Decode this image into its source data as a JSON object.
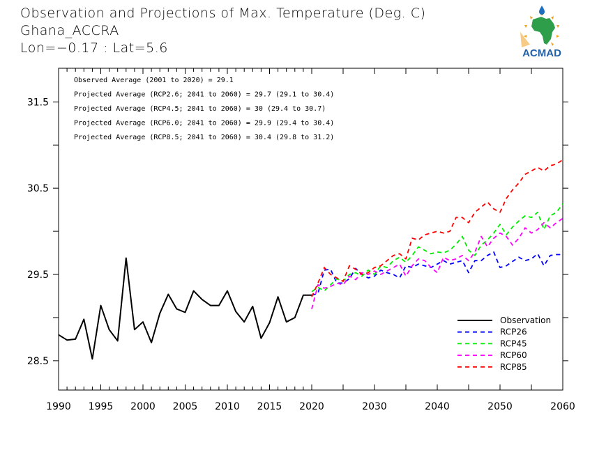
{
  "header": {
    "title": "Observation and Projections of Max. Temperature (Deg. C)",
    "location": "Ghana_ACCRA",
    "coords": "Lon=−0.17 : Lat=5.6"
  },
  "logo": {
    "text": "ACMAD",
    "colors": {
      "text": "#1f5fa8",
      "map": "#2e9e4a",
      "sun": "#f0a020",
      "drop": "#1f6fc0"
    }
  },
  "chart_data": {
    "type": "line",
    "title": "Observation and Projections of Max. Temperature (Deg. C)",
    "xlabel": "",
    "ylabel": "",
    "ylim": [
      28.16,
      31.89
    ],
    "xlim": [
      1990,
      2060
    ],
    "x_axis_note": "piecewise scale: 1990-2020 expanded, 2020-2060 compressed",
    "yticks": [
      28.5,
      29.5,
      30.5,
      31.5
    ],
    "yticks_minor": [
      29.0,
      30.0,
      31.0
    ],
    "xticks": [
      1990,
      1995,
      2000,
      2005,
      2010,
      2015,
      2020,
      2030,
      2040,
      2050,
      2060
    ],
    "xtick_labels": [
      "1990",
      "1995",
      "2000",
      "2005",
      "2010",
      "2015",
      "2020",
      "2030",
      "2040",
      "2050",
      "2060"
    ],
    "grid": false,
    "legend_position": "bottom-right",
    "annotations": [
      "Observed Average (2001 to 2020) = 29.1",
      "Projected Average (RCP2.6; 2041 to 2060) = 29.7 (29.1 to 30.4)",
      "Projected Average (RCP4.5; 2041 to 2060) = 30 (29.4 to 30.7)",
      "Projected Average (RCP6.0; 2041 to 2060) = 29.9 (29.4 to 30.4)",
      "Projected Average (RCP8.5; 2041 to 2060) = 30.4 (29.8 to 31.2)"
    ],
    "series": [
      {
        "name": "Observation",
        "color": "#000000",
        "style": "solid",
        "x": [
          1990,
          1991,
          1992,
          1993,
          1994,
          1995,
          1996,
          1997,
          1998,
          1999,
          2000,
          2001,
          2002,
          2003,
          2004,
          2005,
          2006,
          2007,
          2008,
          2009,
          2010,
          2011,
          2012,
          2013,
          2014,
          2015,
          2016,
          2017,
          2018,
          2019,
          2020
        ],
        "values": [
          28.8,
          28.74,
          28.75,
          28.98,
          28.52,
          29.14,
          28.86,
          28.73,
          29.69,
          28.86,
          28.95,
          28.71,
          29.05,
          29.27,
          29.1,
          29.06,
          29.31,
          29.21,
          29.14,
          29.14,
          29.31,
          29.07,
          28.95,
          29.13,
          28.76,
          28.94,
          29.24,
          28.95,
          29.0,
          29.26,
          29.26
        ]
      },
      {
        "name": "RCP26",
        "color": "#0000ff",
        "style": "dashed",
        "x": [
          2020,
          2021,
          2022,
          2023,
          2024,
          2025,
          2026,
          2027,
          2028,
          2029,
          2030,
          2031,
          2032,
          2033,
          2034,
          2035,
          2036,
          2037,
          2038,
          2039,
          2040,
          2041,
          2042,
          2043,
          2044,
          2045,
          2046,
          2047,
          2048,
          2049,
          2050,
          2051,
          2052,
          2053,
          2054,
          2055,
          2056,
          2057,
          2058,
          2059,
          2060
        ],
        "values": [
          29.26,
          29.28,
          29.55,
          29.56,
          29.4,
          29.4,
          29.45,
          29.57,
          29.5,
          29.46,
          29.48,
          29.55,
          29.52,
          29.5,
          29.46,
          29.6,
          29.58,
          29.62,
          29.6,
          29.58,
          29.62,
          29.66,
          29.62,
          29.64,
          29.66,
          29.52,
          29.66,
          29.66,
          29.72,
          29.76,
          29.58,
          29.6,
          29.65,
          29.7,
          29.66,
          29.68,
          29.74,
          29.6,
          29.72,
          29.73,
          29.73
        ]
      },
      {
        "name": "RCP45",
        "color": "#00ee00",
        "style": "dashed",
        "x": [
          2020,
          2021,
          2022,
          2023,
          2024,
          2025,
          2026,
          2027,
          2028,
          2029,
          2030,
          2031,
          2032,
          2033,
          2034,
          2035,
          2036,
          2037,
          2038,
          2039,
          2040,
          2041,
          2042,
          2043,
          2044,
          2045,
          2046,
          2047,
          2048,
          2049,
          2050,
          2051,
          2052,
          2053,
          2054,
          2055,
          2056,
          2057,
          2058,
          2059,
          2060
        ],
        "values": [
          29.3,
          29.35,
          29.31,
          29.38,
          29.45,
          29.42,
          29.5,
          29.52,
          29.48,
          29.55,
          29.5,
          29.6,
          29.58,
          29.66,
          29.7,
          29.64,
          29.72,
          29.82,
          29.78,
          29.74,
          29.76,
          29.75,
          29.78,
          29.85,
          29.94,
          29.78,
          29.72,
          29.84,
          29.9,
          29.98,
          30.08,
          29.96,
          30.05,
          30.12,
          30.18,
          30.16,
          30.22,
          30.02,
          30.18,
          30.22,
          30.32
        ]
      },
      {
        "name": "RCP60",
        "color": "#ff00ff",
        "style": "dashed",
        "x": [
          2020,
          2021,
          2022,
          2023,
          2024,
          2025,
          2026,
          2027,
          2028,
          2029,
          2030,
          2031,
          2032,
          2033,
          2034,
          2035,
          2036,
          2037,
          2038,
          2039,
          2040,
          2041,
          2042,
          2043,
          2044,
          2045,
          2046,
          2047,
          2048,
          2049,
          2050,
          2051,
          2052,
          2053,
          2054,
          2055,
          2056,
          2057,
          2058,
          2059,
          2060
        ],
        "values": [
          29.1,
          29.38,
          29.34,
          29.36,
          29.4,
          29.38,
          29.48,
          29.44,
          29.52,
          29.5,
          29.54,
          29.5,
          29.54,
          29.58,
          29.62,
          29.48,
          29.6,
          29.68,
          29.66,
          29.58,
          29.52,
          29.7,
          29.66,
          29.68,
          29.72,
          29.66,
          29.76,
          29.94,
          29.82,
          29.92,
          29.98,
          29.94,
          29.84,
          29.92,
          30.04,
          29.98,
          30.02,
          30.1,
          30.04,
          30.1,
          30.15
        ]
      },
      {
        "name": "RCP85",
        "color": "#ff0000",
        "style": "dashed",
        "x": [
          2020,
          2021,
          2022,
          2023,
          2024,
          2025,
          2026,
          2027,
          2028,
          2029,
          2030,
          2031,
          2032,
          2033,
          2034,
          2035,
          2036,
          2037,
          2038,
          2039,
          2040,
          2041,
          2042,
          2043,
          2044,
          2045,
          2046,
          2047,
          2048,
          2049,
          2050,
          2051,
          2052,
          2053,
          2054,
          2055,
          2056,
          2057,
          2058,
          2059,
          2060
        ],
        "values": [
          29.24,
          29.4,
          29.58,
          29.5,
          29.46,
          29.42,
          29.6,
          29.56,
          29.5,
          29.52,
          29.58,
          29.6,
          29.66,
          29.72,
          29.74,
          29.68,
          29.92,
          29.9,
          29.96,
          29.98,
          30.0,
          29.98,
          30.0,
          30.16,
          30.16,
          30.1,
          30.22,
          30.28,
          30.34,
          30.26,
          30.22,
          30.38,
          30.48,
          30.56,
          30.66,
          30.7,
          30.74,
          30.7,
          30.76,
          30.78,
          30.83
        ]
      }
    ]
  }
}
